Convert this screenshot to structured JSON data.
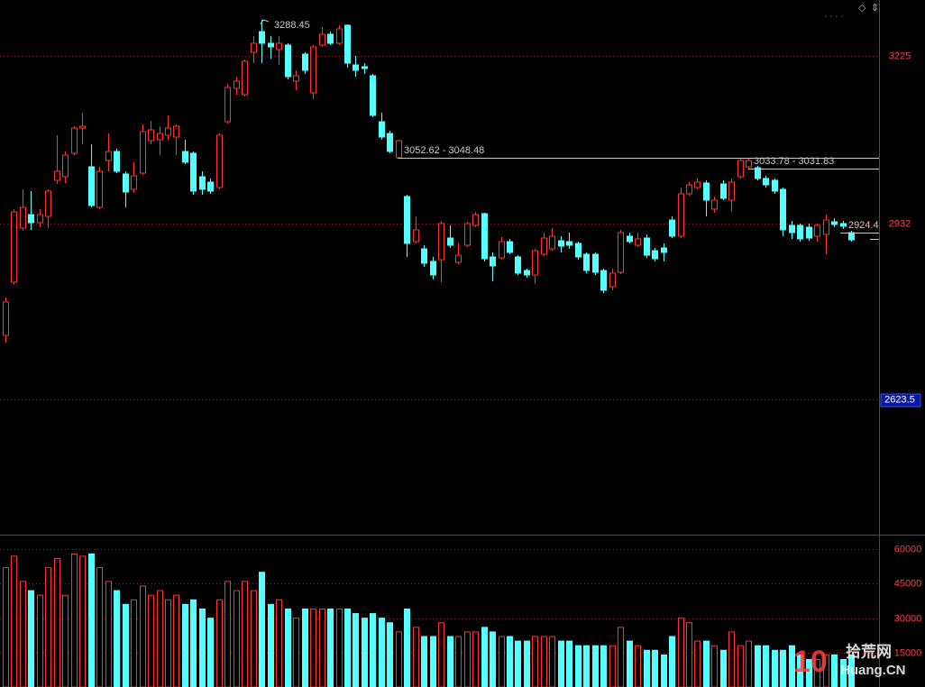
{
  "chart_data": {
    "type": "candlestick",
    "up_color": "#ff3232",
    "down_color": "#54ffff",
    "open": [
      2735.6,
      2828.8,
      2923.5,
      2947.2,
      2933.0,
      2944.0,
      3007.2,
      3013.5,
      3054.6,
      3098.8,
      3030.9,
      2959.8,
      3041.9,
      3057.7,
      3018.3,
      2991.4,
      3019.8,
      3076.7,
      3078.3,
      3086.2,
      3083.0,
      3057.7,
      3054.6,
      3013.5,
      3004.0,
      2994.6,
      3109.8,
      3168.3,
      3157.2,
      3231.4,
      3267.7,
      3247.2,
      3236.2,
      3244.1,
      3180.9,
      3228.3,
      3160.4,
      3244.1,
      3263.0,
      3247.2,
      3278.8,
      3209.3,
      3206.2,
      3190.4,
      3109.8,
      3089.3,
      3046.7,
      2978.8,
      2899.8,
      2887.2,
      2865.1,
      2868.2,
      2906.1,
      2863.5,
      2893.5,
      2928.3,
      2948.8,
      2873.0,
      2871.4,
      2899.8,
      2873.0,
      2849.3,
      2841.4,
      2877.7,
      2887.2,
      2901.4,
      2899.8,
      2896.7,
      2877.7,
      2877.7,
      2849.3,
      2820.9,
      2846.1,
      2909.3,
      2893.5,
      2906.1,
      2884.0,
      2888.8,
      2937.7,
      2909.3,
      2983.5,
      2994.6,
      3002.5,
      2956.7,
      3000.9,
      2972.5,
      3013.5,
      3030.9,
      3029.3,
      3010.4,
      3007.2,
      2991.4,
      2928.3,
      2928.3,
      2925.1,
      2909.3,
      2912.5,
      2934.6,
      2931.4,
      2915.6
    ],
    "high": [
      2802.0,
      2956.7,
      2991.4,
      2988.3,
      2956.7,
      2991.4,
      3086.2,
      3057.7,
      3101.9,
      3125.6,
      3070.4,
      3030.9,
      3089.3,
      3062.5,
      3023.0,
      3038.8,
      3105.1,
      3111.4,
      3101.9,
      3120.9,
      3105.1,
      3078.3,
      3057.7,
      3023.0,
      3010.4,
      3089.3,
      3176.2,
      3188.8,
      3218.8,
      3259.8,
      3288.45,
      3259.8,
      3259.8,
      3247.2,
      3199.8,
      3231.4,
      3244.1,
      3275.6,
      3267.7,
      3278.8,
      3280.4,
      3225.1,
      3212.5,
      3193.5,
      3125.6,
      3094.0,
      3078.3,
      2981.9,
      2944.0,
      2893.5,
      2873.0,
      2936.1,
      2928.3,
      2896.7,
      2934.6,
      2952.0,
      2950.4,
      2880.9,
      2907.7,
      2904.6,
      2876.1,
      2852.5,
      2887.2,
      2915.6,
      2923.5,
      2909.3,
      2915.6,
      2899.8,
      2880.9,
      2880.9,
      2852.5,
      2852.5,
      2920.4,
      2915.6,
      2915.6,
      2912.5,
      2888.8,
      2896.7,
      2944.0,
      2994.6,
      3004.0,
      3010.4,
      3007.2,
      2978.8,
      3007.2,
      3010.4,
      3045.1,
      3046.7,
      3032.5,
      3015.1,
      3010.4,
      2994.6,
      2936.1,
      2931.4,
      2931.4,
      2931.4,
      2947.2,
      2940.9,
      2936.1,
      2918.8
    ],
    "low": [
      2723.0,
      2824.0,
      2918.8,
      2920.4,
      2925.1,
      2923.5,
      3000.9,
      3002.5,
      3051.4,
      3070.4,
      2959.8,
      2956.7,
      3023.0,
      3019.8,
      2959.8,
      2985.1,
      3016.7,
      3070.4,
      3051.4,
      3078.3,
      3051.4,
      3035.6,
      2981.9,
      2981.9,
      2983.5,
      2991.4,
      3106.7,
      3157.2,
      3154.0,
      3212.5,
      3212.5,
      3220.4,
      3209.3,
      3184.1,
      3165.1,
      3193.5,
      3149.3,
      3240.9,
      3244.1,
      3244.1,
      3204.6,
      3188.8,
      3193.5,
      3117.7,
      3078.3,
      3054.6,
      3045.1,
      2873.0,
      2896.7,
      2855.6,
      2833.5,
      2828.8,
      2888.8,
      2860.4,
      2890.4,
      2925.1,
      2865.1,
      2830.4,
      2868.2,
      2877.7,
      2841.4,
      2836.7,
      2825.6,
      2874.6,
      2884.0,
      2880.9,
      2887.2,
      2868.2,
      2844.6,
      2841.4,
      2809.8,
      2814.6,
      2843.0,
      2896.7,
      2890.4,
      2871.4,
      2865.1,
      2865.1,
      2906.1,
      2906.1,
      2980.4,
      2991.4,
      2944.0,
      2950.4,
      2972.5,
      2952.0,
      3010.4,
      3026.1,
      3007.2,
      2994.6,
      2983.5,
      2909.3,
      2904.6,
      2899.8,
      2901.4,
      2899.8,
      2877.7,
      2925.1,
      2922.0,
      2899.8
    ],
    "close": [
      2794.0,
      2951.9,
      2959.8,
      2933.0,
      2947.2,
      2988.3,
      3023.0,
      3051.4,
      3098.8,
      3101.9,
      2963.0,
      3023.0,
      3057.7,
      3023.0,
      2986.7,
      3015.1,
      3092.5,
      3095.6,
      3089.3,
      3098.8,
      3101.9,
      3038.8,
      2988.3,
      2991.4,
      2988.3,
      3086.2,
      3169.8,
      3180.9,
      3215.6,
      3247.2,
      3247.2,
      3240.9,
      3247.2,
      3188.8,
      3190.4,
      3199.8,
      3240.9,
      3263.0,
      3247.2,
      3272.5,
      3212.5,
      3199.8,
      3203.0,
      3120.9,
      3083.0,
      3057.7,
      3076.7,
      2896.7,
      2920.4,
      2861.9,
      2841.4,
      2931.4,
      2893.5,
      2876.1,
      2931.4,
      2947.2,
      2869.8,
      2857.2,
      2899.8,
      2880.9,
      2844.6,
      2841.4,
      2884.0,
      2906.1,
      2909.3,
      2891.9,
      2893.5,
      2873.0,
      2849.3,
      2846.1,
      2814.6,
      2844.6,
      2915.6,
      2899.8,
      2904.6,
      2876.1,
      2869.8,
      2880.9,
      2909.3,
      2983.5,
      2999.3,
      3004.0,
      2972.5,
      2972.5,
      2975.6,
      3004.0,
      3041.9,
      3041.9,
      3010.4,
      2999.3,
      2988.3,
      2920.4,
      2915.6,
      2904.6,
      2906.1,
      2928.3,
      2937.7,
      2929.8,
      2926.7,
      2903.0
    ],
    "volume": [
      52000,
      57000,
      46000,
      42000,
      40000,
      52000,
      56000,
      40000,
      58000,
      57000,
      58000,
      52000,
      46000,
      42000,
      36000,
      38000,
      44000,
      40000,
      42000,
      38000,
      40000,
      36000,
      38000,
      34000,
      30000,
      38000,
      46000,
      42000,
      46000,
      42000,
      50000,
      36000,
      38000,
      34000,
      30000,
      34000,
      34000,
      34000,
      34000,
      34000,
      34000,
      32000,
      30000,
      32000,
      30000,
      28000,
      24000,
      34000,
      26000,
      22000,
      22000,
      28000,
      22000,
      22000,
      24000,
      24000,
      26000,
      24000,
      22000,
      22000,
      20000,
      20000,
      22000,
      22000,
      22000,
      20000,
      20000,
      18000,
      18000,
      18000,
      18000,
      18000,
      26000,
      20000,
      18000,
      16000,
      16000,
      14000,
      22000,
      30000,
      28000,
      20000,
      20000,
      18000,
      16000,
      24000,
      18000,
      20000,
      18000,
      18000,
      16000,
      16000,
      18000,
      14000,
      12000,
      12000,
      14000,
      14000,
      12000,
      14000
    ],
    "ylim": [
      2388.2,
      3323
    ],
    "yticks": [
      2623.5,
      {
        "value": 2932,
        "label": "2932"
      },
      3225
    ],
    "vol_ylim": [
      0,
      66000
    ],
    "vol_yticks": [
      15000,
      30000,
      45000,
      60000
    ],
    "annotations": [
      "3288.45",
      "3052.62 - 3048.48",
      "3033.78 - 3031.83",
      "2924.4"
    ],
    "watermark": [
      "10",
      "拾荒网",
      "Huang.CN"
    ]
  }
}
